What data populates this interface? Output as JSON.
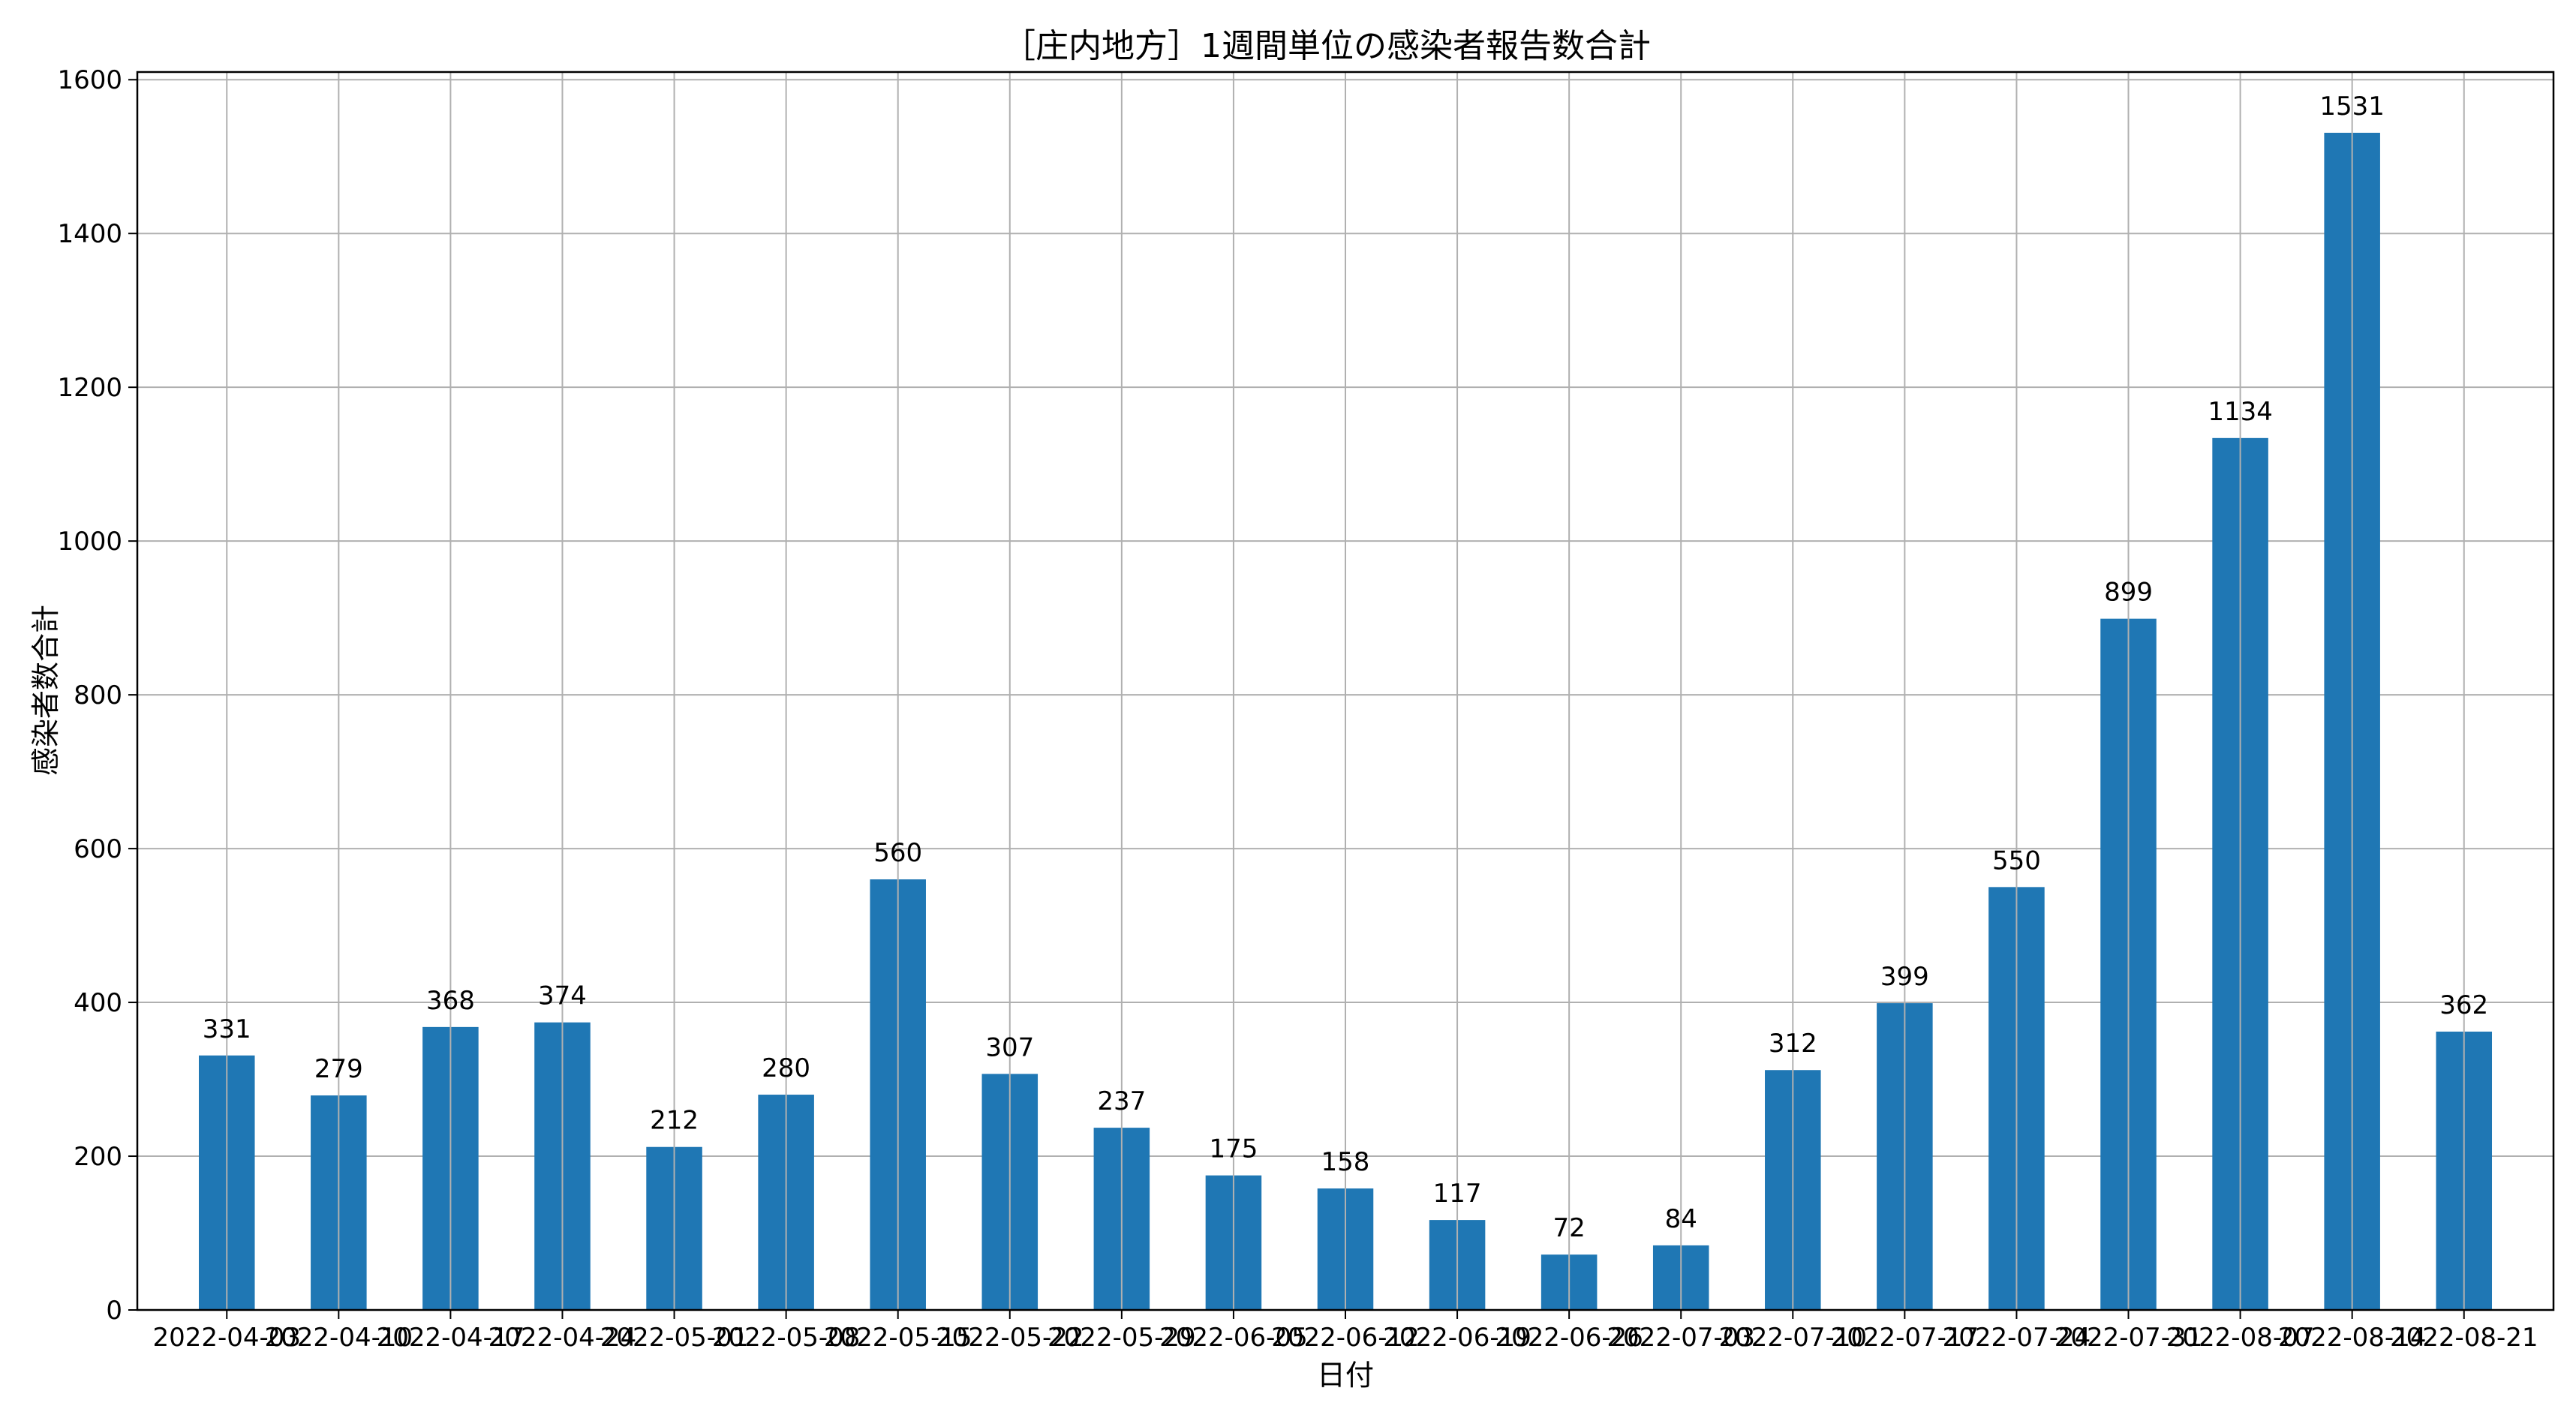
{
  "chart_data": {
    "type": "bar",
    "title": "［庄内地方］1週間単位の感染者報告数合計",
    "xlabel": "日付",
    "ylabel": "感染者数合計",
    "categories": [
      "2022-04-03",
      "2022-04-10",
      "2022-04-17",
      "2022-04-24",
      "2022-05-01",
      "2022-05-08",
      "2022-05-15",
      "2022-05-22",
      "2022-05-29",
      "2022-06-05",
      "2022-06-12",
      "2022-06-19",
      "2022-06-26",
      "2022-07-03",
      "2022-07-10",
      "2022-07-17",
      "2022-07-24",
      "2022-07-31",
      "2022-08-07",
      "2022-08-14",
      "2022-08-21"
    ],
    "values": [
      331,
      279,
      368,
      374,
      212,
      280,
      560,
      307,
      237,
      175,
      158,
      117,
      72,
      84,
      312,
      399,
      550,
      899,
      1134,
      1531,
      362
    ],
    "ylim": [
      0,
      1610
    ],
    "yticks": [
      0,
      200,
      400,
      600,
      800,
      1000,
      1200,
      1400,
      1600
    ],
    "grid": true,
    "bar_color": "#1f77b4"
  }
}
